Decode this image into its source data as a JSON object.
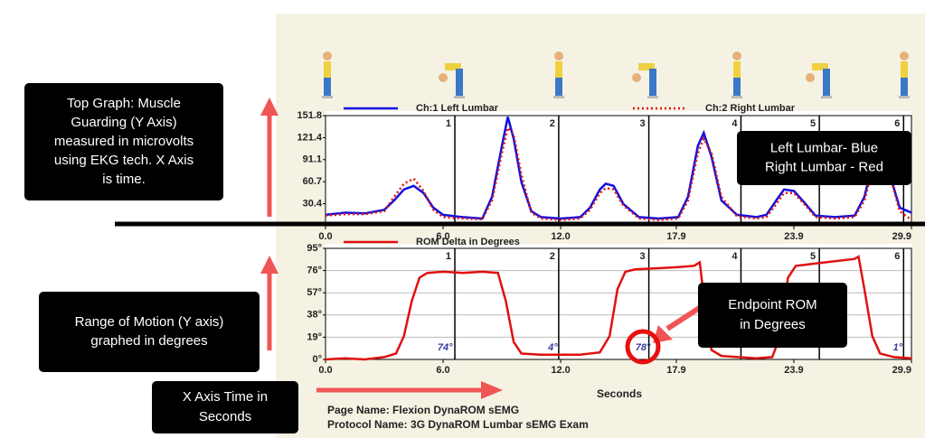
{
  "chart_data": [
    {
      "type": "line",
      "xlim": [
        0,
        29.9
      ],
      "ylim": [
        0,
        151.8
      ],
      "xticks": [
        {
          "value": 0,
          "label": "0.0"
        },
        {
          "value": 6,
          "label": "6.0"
        },
        {
          "value": 12,
          "label": "12.0"
        },
        17.9,
        23.9,
        29.9
      ],
      "yticks": [
        30.4,
        60.7,
        91.1,
        121.4,
        151.8
      ],
      "markers": [
        {
          "label": "1",
          "x": 6.6
        },
        {
          "label": "2",
          "x": 11.9
        },
        {
          "label": "3",
          "x": 16.5
        },
        {
          "label": "4",
          "x": 21.2
        },
        {
          "label": "5",
          "x": 25.2
        },
        {
          "label": "6",
          "x": 29.5
        }
      ],
      "x": [
        0,
        1,
        2,
        3,
        3.5,
        4,
        4.5,
        5,
        5.5,
        6,
        7,
        8,
        8.5,
        9,
        9.3,
        9.6,
        10,
        10.5,
        11,
        12,
        13,
        13.5,
        14,
        14.3,
        14.7,
        15.2,
        16,
        17,
        18,
        18.5,
        19,
        19.3,
        19.7,
        20.2,
        21,
        22,
        22.5,
        23,
        23.4,
        23.9,
        24.5,
        25,
        26,
        27,
        27.5,
        28,
        28.4,
        28.8,
        29.3,
        29.9
      ],
      "series": [
        {
          "name": "Ch:1 Left Lumbar",
          "color": "#1010e0",
          "style": "solid",
          "values": [
            15,
            18,
            17,
            22,
            35,
            50,
            55,
            45,
            25,
            15,
            12,
            10,
            40,
            110,
            150,
            120,
            60,
            20,
            12,
            10,
            12,
            25,
            50,
            58,
            55,
            30,
            12,
            10,
            12,
            40,
            110,
            128,
            95,
            35,
            15,
            12,
            15,
            35,
            50,
            48,
            30,
            14,
            12,
            14,
            40,
            95,
            110,
            70,
            25,
            18
          ]
        },
        {
          "name": "Ch:2 Right Lumbar",
          "color": "#e01010",
          "style": "dotted",
          "values": [
            14,
            16,
            16,
            20,
            40,
            58,
            65,
            48,
            22,
            12,
            10,
            9,
            35,
            100,
            135,
            125,
            70,
            18,
            10,
            8,
            10,
            22,
            45,
            52,
            50,
            28,
            10,
            8,
            10,
            35,
            100,
            120,
            100,
            40,
            13,
            10,
            12,
            30,
            45,
            45,
            28,
            12,
            10,
            12,
            35,
            88,
            100,
            70,
            20,
            8
          ]
        }
      ]
    },
    {
      "type": "line",
      "x_label": "Seconds",
      "xlim": [
        0,
        29.9
      ],
      "ylim": [
        0,
        95
      ],
      "xticks": [
        {
          "value": 0,
          "label": "0.0"
        },
        {
          "value": 6,
          "label": "6.0"
        },
        {
          "value": 12,
          "label": "12.0"
        },
        17.9,
        23.9,
        29.9
      ],
      "yticks": [
        {
          "value": 0,
          "label": "0°"
        },
        {
          "value": 19,
          "label": "19°"
        },
        {
          "value": 38,
          "label": "38°"
        },
        {
          "value": 57,
          "label": "57°"
        },
        {
          "value": 76,
          "label": "76°"
        },
        {
          "value": 95,
          "label": "95°"
        }
      ],
      "grid": true,
      "markers": [
        {
          "label": "1",
          "x": 6.6
        },
        {
          "label": "2",
          "x": 11.9
        },
        {
          "label": "3",
          "x": 16.5
        },
        {
          "label": "4",
          "x": 21.2
        },
        {
          "label": "5",
          "x": 25.2
        },
        {
          "label": "6",
          "x": 29.5
        }
      ],
      "endpoints": [
        {
          "x": 6.1,
          "value": 74,
          "label": "74°"
        },
        {
          "x": 11.6,
          "value": 4,
          "label": "4°"
        },
        {
          "x": 16.2,
          "value": 78,
          "label": "78°"
        },
        {
          "x": 29.2,
          "value": 1,
          "label": "1°"
        }
      ],
      "x": [
        0,
        1,
        2,
        3,
        3.6,
        4,
        4.4,
        4.8,
        5.2,
        6,
        7,
        8,
        8.8,
        9.2,
        9.6,
        10,
        11,
        12,
        13,
        14,
        14.5,
        14.9,
        15.3,
        15.8,
        17,
        18,
        18.8,
        19.1,
        19.4,
        19.7,
        20.2,
        21,
        22,
        22.8,
        23.2,
        23.6,
        24,
        25,
        26,
        27,
        27.2,
        27.5,
        27.9,
        28.3,
        29,
        29.9
      ],
      "series": [
        {
          "name": "ROM Delta in Degrees",
          "color": "#e01010",
          "style": "solid",
          "values": [
            0,
            1,
            0,
            2,
            5,
            20,
            50,
            70,
            74,
            75,
            74,
            75,
            74,
            50,
            15,
            5,
            4,
            4,
            4,
            6,
            20,
            60,
            75,
            77,
            78,
            79,
            80,
            83,
            40,
            8,
            3,
            2,
            1,
            2,
            20,
            70,
            80,
            82,
            84,
            86,
            88,
            60,
            20,
            5,
            2,
            1
          ]
        }
      ]
    }
  ],
  "page_name": "Page Name:  Flexion DynaROM sEMG",
  "protocol_name": "Protocol Name:  3G DynaROM Lumbar sEMG Exam",
  "annotations": [
    {
      "lines": [
        "Top Graph:  Muscle",
        "Guarding  (Y Axis)",
        "measured in microvolts",
        "using EKG tech. X Axis",
        "is time."
      ]
    },
    {
      "lines": [
        "Left Lumbar- Blue",
        "Right Lumbar - Red"
      ]
    },
    {
      "lines": [
        "Range of Motion (Y axis)",
        "graphed in degrees"
      ]
    },
    {
      "lines": [
        "Endpoint ROM",
        "in Degrees"
      ]
    },
    {
      "lines": [
        "X Axis Time in",
        "Seconds"
      ]
    }
  ]
}
